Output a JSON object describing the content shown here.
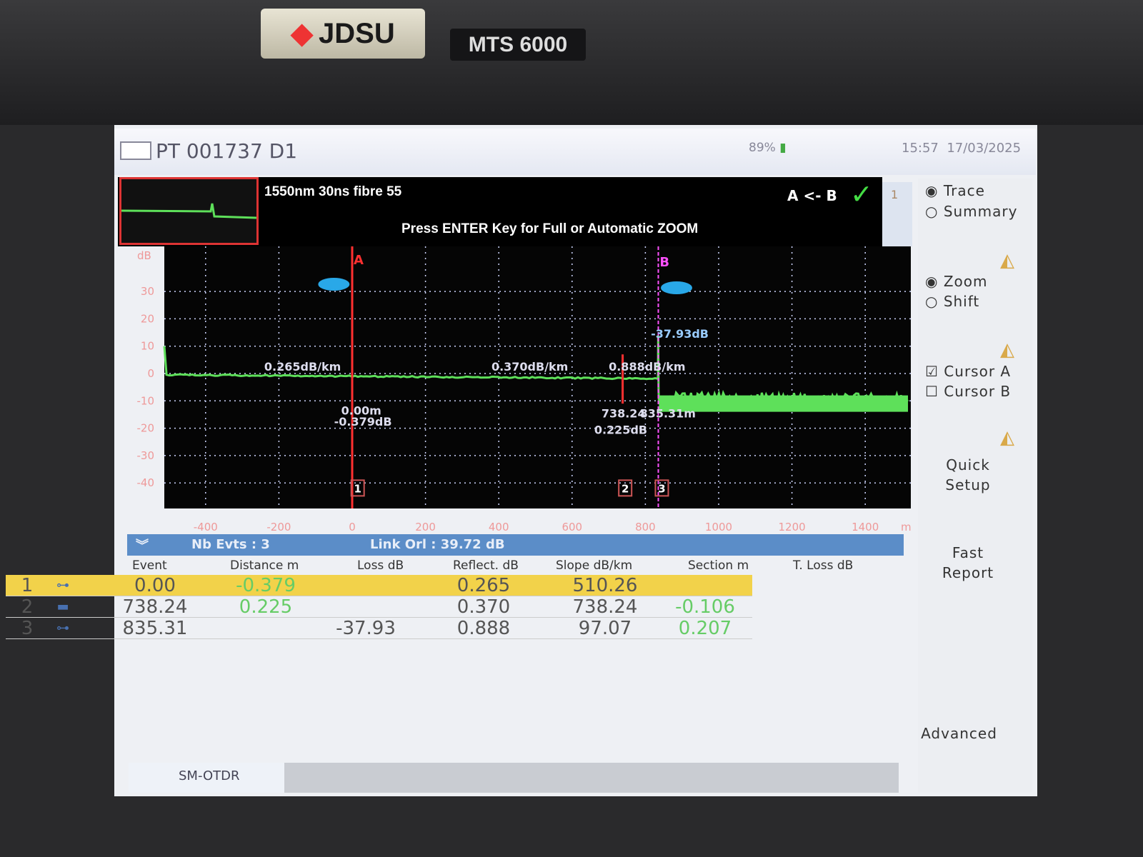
{
  "device": {
    "brand": "JDSU",
    "model": "MTS 6000"
  },
  "titlebar": {
    "title": "PT 001737 D1",
    "battery": "89%",
    "time": "15:57",
    "date": "17/03/2025"
  },
  "header": {
    "params": "1550nm  30ns  fibre  55",
    "direction": "A <- B",
    "hint": "Press ENTER Key for Full or Automatic ZOOM",
    "page": "1"
  },
  "trace": {
    "y_unit": "dB",
    "x_unit": "m",
    "xlim": [
      -510,
      1520
    ],
    "ylim": [
      -48,
      48
    ],
    "x_ticks": [
      -400,
      -200,
      0,
      200,
      400,
      600,
      800,
      1000,
      1200,
      1400
    ],
    "y_ticks": [
      30,
      20,
      10,
      0,
      -10,
      -20,
      -30,
      -40
    ],
    "cursor_a": 0,
    "cursor_b": 835.31,
    "slope_labels": [
      {
        "x": -240,
        "text": "0.265dB/km"
      },
      {
        "x": 380,
        "text": "0.370dB/km"
      },
      {
        "x": 700,
        "text": "0.888dB/km"
      }
    ],
    "event_labels": [
      {
        "event": 1,
        "distance": "0.00m",
        "value": "-0.379dB"
      },
      {
        "event": 2,
        "distance": "738.24",
        "value": "0.225dB"
      },
      {
        "event": 3,
        "distance": "835.31m",
        "value": "-37.93dB"
      }
    ],
    "colors": {
      "trace": "#5ee05a",
      "cursor_a": "#ff3030",
      "cursor_b": "#ff50ff",
      "grid": "#cfd6ff"
    }
  },
  "summary": {
    "nb_events": "Nb Evts : 3",
    "link_orl": "Link Orl : 39.72 dB"
  },
  "table": {
    "headers": [
      "Event",
      "Distance  m",
      "Loss dB",
      "Reflect. dB",
      "Slope  dB/km",
      "Section m",
      "T. Loss dB"
    ],
    "rows": [
      {
        "event": "1",
        "icon": "connector-start-icon",
        "distance": "0.00",
        "loss": "-0.379",
        "reflect": "",
        "slope": "0.265",
        "section": "510.26",
        "tloss": "",
        "selected": true
      },
      {
        "event": "2",
        "icon": "splice-icon",
        "distance": "738.24",
        "loss": "0.225",
        "reflect": "",
        "slope": "0.370",
        "section": "738.24",
        "tloss": "-0.106",
        "selected": false
      },
      {
        "event": "3",
        "icon": "connector-end-icon",
        "distance": "835.31",
        "loss": "",
        "reflect": "-37.93",
        "slope": "0.888",
        "section": "97.07",
        "tloss": "0.207",
        "selected": false
      }
    ]
  },
  "side": {
    "trace": "Trace",
    "summary": "Summary",
    "zoom": "Zoom",
    "shift": "Shift",
    "cursor_a": "Cursor A",
    "cursor_b": "Cursor B",
    "quick1": "Quick",
    "quick2": "Setup",
    "fast1": "Fast",
    "fast2": "Report",
    "advanced": "Advanced"
  },
  "tab": {
    "label": "SM-OTDR"
  }
}
